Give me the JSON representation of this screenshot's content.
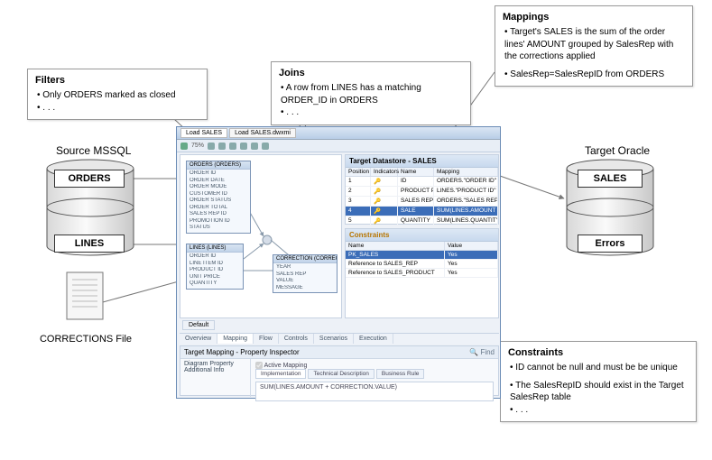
{
  "annotations": {
    "filters": {
      "title": "Filters",
      "items": [
        "Only ORDERS marked as closed",
        ". . ."
      ]
    },
    "joins": {
      "title": "Joins",
      "items": [
        "A row from LINES has a matching ORDER_ID in ORDERS",
        ". . ."
      ]
    },
    "mappings": {
      "title": "Mappings",
      "items": [
        "Target's SALES is the sum of the order lines' AMOUNT grouped by SalesRep with the corrections applied",
        "SalesRep=SalesRepID from ORDERS"
      ]
    },
    "constraints": {
      "title": "Constraints",
      "items": [
        "ID cannot be null and must be be unique",
        "The SalesRepID should exist in the Target SalesRep table",
        ". . ."
      ]
    }
  },
  "source": {
    "title": "Source MSSQL",
    "tables": [
      "ORDERS",
      "LINES"
    ],
    "file_label": "CORRECTIONS File"
  },
  "target": {
    "title": "Target Oracle",
    "tables": [
      "SALES",
      "Errors"
    ]
  },
  "app": {
    "tab1": "Load SALES",
    "tab2": "Load SALES.dwxmi",
    "zoom": "75%",
    "canvas": {
      "orders": {
        "title": "ORDERS (ORDERS)",
        "cols": [
          "ORDER ID",
          "ORDER DATE",
          "ORDER MODE",
          "CUSTOMER ID",
          "ORDER STATUS",
          "ORDER TOTAL",
          "SALES REP ID",
          "PROMOTION ID",
          "STATUS"
        ]
      },
      "lines": {
        "title": "LINES (LINES)",
        "cols": [
          "ORDER ID",
          "LINE ITEM ID",
          "PRODUCT ID",
          "UNIT PRICE",
          "QUANTITY"
        ]
      },
      "corr": {
        "title": "CORRECTION (CORRECTION)",
        "cols": [
          "YEAR",
          "SALES REP",
          "VALUE",
          "MESSAGE"
        ]
      }
    },
    "target_panel": {
      "title": "Target Datastore - SALES",
      "columns": [
        "Position",
        "Indicators",
        "Name",
        "Mapping"
      ],
      "rows": [
        {
          "pos": "1",
          "ind": "",
          "name": "ID",
          "map": "ORDERS.\"ORDER ID\""
        },
        {
          "pos": "2",
          "ind": "",
          "name": "PRODUCT PK",
          "map": "LINES.\"PRODUCT ID\""
        },
        {
          "pos": "3",
          "ind": "",
          "name": "SALES REP",
          "map": "ORDERS.\"SALES REP ID\""
        },
        {
          "pos": "4",
          "ind": "",
          "name": "SALE",
          "map": "SUM(LINES.AMOUNT + CORRECTION.VALUE)",
          "selected": true
        },
        {
          "pos": "5",
          "ind": "",
          "name": "QUANTITY",
          "map": "SUM(LINES.QUANTITY)"
        }
      ]
    },
    "constraints_panel": {
      "title": "Constraints",
      "col_labels": [
        "Name",
        "Value"
      ],
      "rows": [
        {
          "name": "PK_SALES",
          "value": "Yes",
          "selected": true
        },
        {
          "name": "Reference to SALES_REP",
          "value": "Yes"
        },
        {
          "name": "Reference to SALES_PRODUCT",
          "value": "Yes"
        }
      ]
    },
    "bottom_tabs": [
      "Overview",
      "Mapping",
      "Flow",
      "Controls",
      "Scenarios",
      "Execution"
    ],
    "default_label": "Default",
    "property": {
      "title": "Target Mapping - Property Inspector",
      "left_labels": [
        "Diagram Property",
        "Additional Info"
      ],
      "active_mapping": "Active Mapping",
      "tabs": [
        "Implementation",
        "Technical Description",
        "Business Rule"
      ],
      "formula": "SUM(LINES.AMOUNT + CORRECTION.VALUE)",
      "find": "Find"
    }
  },
  "colors": {
    "annot_border": "#999999",
    "app_border": "#6a8bb5",
    "selection": "#3b6db8"
  }
}
